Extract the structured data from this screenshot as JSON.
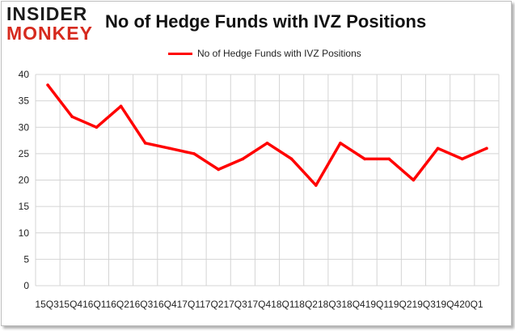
{
  "logo": {
    "line1": "INSIDER",
    "line2": "MONKEY"
  },
  "chart_data": {
    "type": "line",
    "title": "No of Hedge Funds with IVZ Positions",
    "xlabel": "",
    "ylabel": "",
    "ylim": [
      0,
      40
    ],
    "yticks": [
      0,
      5,
      10,
      15,
      20,
      25,
      30,
      35,
      40
    ],
    "grid": true,
    "legend": "top-center",
    "x_axis_text": "15Q315Q416Q116Q216Q316Q417Q117Q217Q317Q418Q118Q218Q318Q419Q119Q219Q319Q420Q1",
    "categories": [
      "15Q3",
      "15Q4",
      "16Q1",
      "16Q2",
      "16Q3",
      "16Q4",
      "17Q1",
      "17Q2",
      "17Q3",
      "17Q4",
      "18Q1",
      "18Q2",
      "18Q3",
      "18Q4",
      "19Q1",
      "19Q2",
      "19Q3",
      "19Q4",
      "20Q1"
    ],
    "series": [
      {
        "name": "No of Hedge Funds with IVZ Positions",
        "color": "#ff0000",
        "values": [
          38,
          32,
          30,
          34,
          27,
          26,
          25,
          22,
          24,
          27,
          24,
          19,
          27,
          24,
          24,
          20,
          26,
          24,
          26
        ]
      }
    ]
  }
}
